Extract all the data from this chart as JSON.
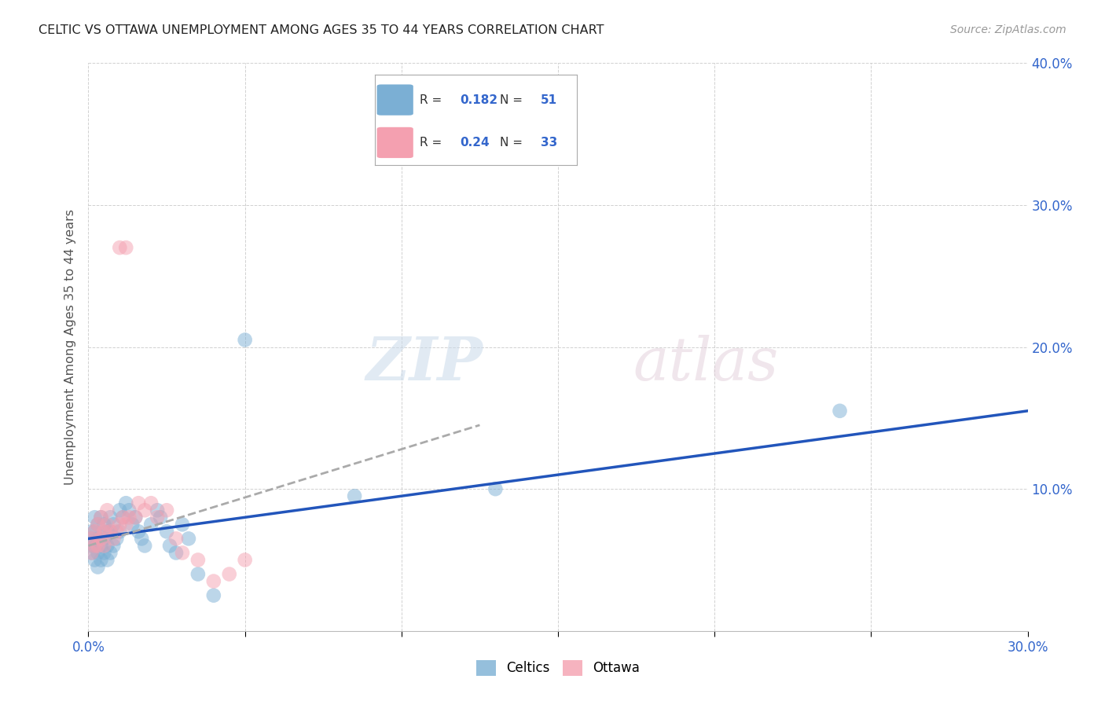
{
  "title": "CELTIC VS OTTAWA UNEMPLOYMENT AMONG AGES 35 TO 44 YEARS CORRELATION CHART",
  "source": "Source: ZipAtlas.com",
  "ylabel": "Unemployment Among Ages 35 to 44 years",
  "xlim": [
    0.0,
    0.3
  ],
  "ylim": [
    0.0,
    0.4
  ],
  "xticks": [
    0.0,
    0.05,
    0.1,
    0.15,
    0.2,
    0.25,
    0.3
  ],
  "yticks": [
    0.0,
    0.1,
    0.2,
    0.3,
    0.4
  ],
  "celtics_color": "#7BAFD4",
  "ottawa_color": "#F4A0B0",
  "celtics_line_color": "#2255BB",
  "ottawa_line_color": "#AAAAAA",
  "celtics_R": 0.182,
  "celtics_N": 51,
  "ottawa_R": 0.24,
  "ottawa_N": 33,
  "celtics_x": [
    0.001,
    0.001,
    0.001,
    0.001,
    0.002,
    0.002,
    0.002,
    0.002,
    0.003,
    0.003,
    0.003,
    0.003,
    0.004,
    0.004,
    0.004,
    0.005,
    0.005,
    0.005,
    0.006,
    0.006,
    0.006,
    0.007,
    0.007,
    0.007,
    0.008,
    0.008,
    0.009,
    0.01,
    0.01,
    0.011,
    0.012,
    0.013,
    0.014,
    0.015,
    0.016,
    0.017,
    0.018,
    0.02,
    0.022,
    0.023,
    0.025,
    0.026,
    0.028,
    0.03,
    0.032,
    0.035,
    0.04,
    0.05,
    0.085,
    0.13,
    0.24
  ],
  "celtics_y": [
    0.055,
    0.06,
    0.065,
    0.07,
    0.05,
    0.06,
    0.07,
    0.08,
    0.045,
    0.055,
    0.065,
    0.075,
    0.05,
    0.06,
    0.08,
    0.055,
    0.065,
    0.075,
    0.05,
    0.06,
    0.07,
    0.055,
    0.07,
    0.08,
    0.06,
    0.075,
    0.065,
    0.07,
    0.085,
    0.08,
    0.09,
    0.085,
    0.075,
    0.08,
    0.07,
    0.065,
    0.06,
    0.075,
    0.085,
    0.08,
    0.07,
    0.06,
    0.055,
    0.075,
    0.065,
    0.04,
    0.025,
    0.205,
    0.095,
    0.1,
    0.155
  ],
  "ottawa_x": [
    0.001,
    0.001,
    0.002,
    0.002,
    0.003,
    0.003,
    0.004,
    0.004,
    0.005,
    0.005,
    0.006,
    0.006,
    0.007,
    0.008,
    0.009,
    0.01,
    0.011,
    0.012,
    0.013,
    0.015,
    0.016,
    0.018,
    0.02,
    0.022,
    0.025,
    0.028,
    0.03,
    0.035,
    0.04,
    0.045,
    0.05,
    0.01,
    0.012
  ],
  "ottawa_y": [
    0.055,
    0.065,
    0.06,
    0.07,
    0.06,
    0.075,
    0.065,
    0.08,
    0.06,
    0.07,
    0.075,
    0.085,
    0.07,
    0.065,
    0.07,
    0.075,
    0.08,
    0.075,
    0.08,
    0.08,
    0.09,
    0.085,
    0.09,
    0.08,
    0.085,
    0.065,
    0.055,
    0.05,
    0.035,
    0.04,
    0.05,
    0.27,
    0.27
  ],
  "celtics_trendline": [
    0.0,
    0.3,
    0.065,
    0.155
  ],
  "ottawa_trendline": [
    0.0,
    0.125,
    0.06,
    0.145
  ]
}
